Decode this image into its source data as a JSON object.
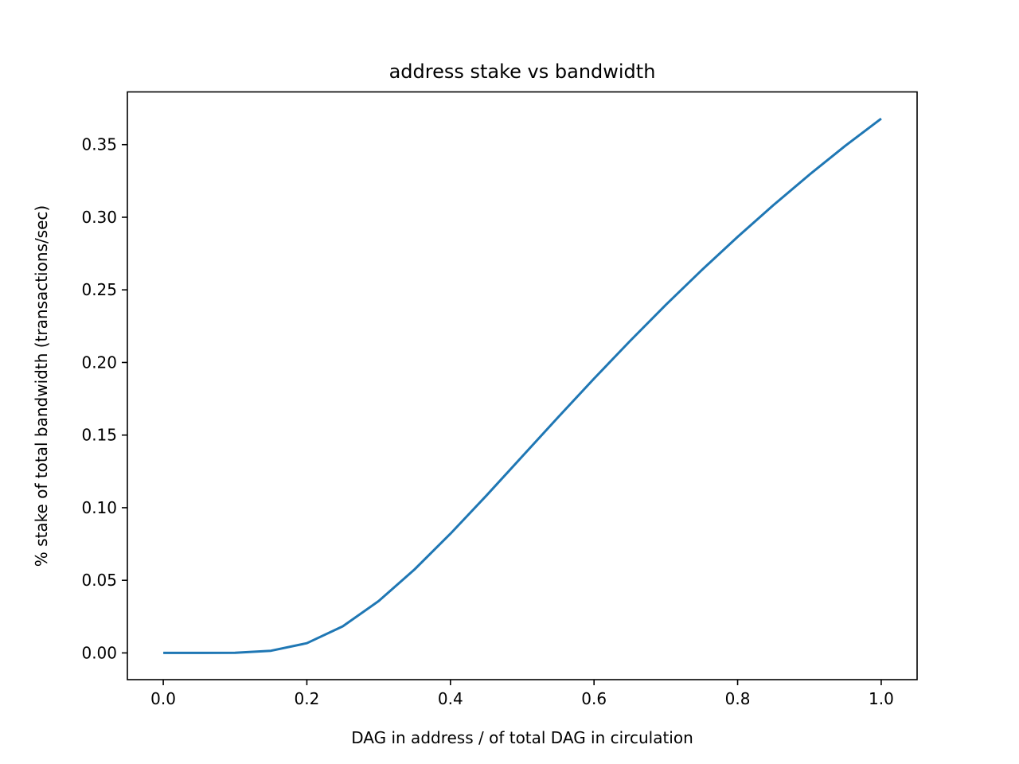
{
  "chart_data": {
    "type": "line",
    "title": "address stake vs bandwidth",
    "xlabel": "DAG in address / of total DAG in circulation",
    "ylabel": "% stake of total bandwidth (transactions/sec)",
    "xlim": [
      -0.05,
      1.05
    ],
    "ylim": [
      -0.0184,
      0.3863
    ],
    "xticks": [
      0.0,
      0.2,
      0.4,
      0.6,
      0.8,
      1.0
    ],
    "xtick_labels": [
      "0.0",
      "0.2",
      "0.4",
      "0.6",
      "0.8",
      "1.0"
    ],
    "yticks": [
      0.0,
      0.05,
      0.1,
      0.15,
      0.2,
      0.25,
      0.3,
      0.35
    ],
    "ytick_labels": [
      "0.00",
      "0.05",
      "0.10",
      "0.15",
      "0.20",
      "0.25",
      "0.30",
      "0.35"
    ],
    "grid": false,
    "series": [
      {
        "color": "#1f77b4",
        "x": [
          0.0,
          0.05,
          0.1,
          0.15,
          0.2,
          0.25,
          0.3,
          0.35,
          0.4,
          0.45,
          0.5,
          0.55,
          0.6,
          0.65,
          0.7,
          0.75,
          0.8,
          0.85,
          0.9,
          0.95,
          1.0
        ],
        "y": [
          0.0,
          0.0,
          0.0001,
          0.0015,
          0.0067,
          0.0183,
          0.0357,
          0.0575,
          0.0821,
          0.1083,
          0.1353,
          0.1623,
          0.1889,
          0.2147,
          0.2397,
          0.2636,
          0.2865,
          0.3084,
          0.3293,
          0.3492,
          0.3679
        ]
      }
    ]
  }
}
